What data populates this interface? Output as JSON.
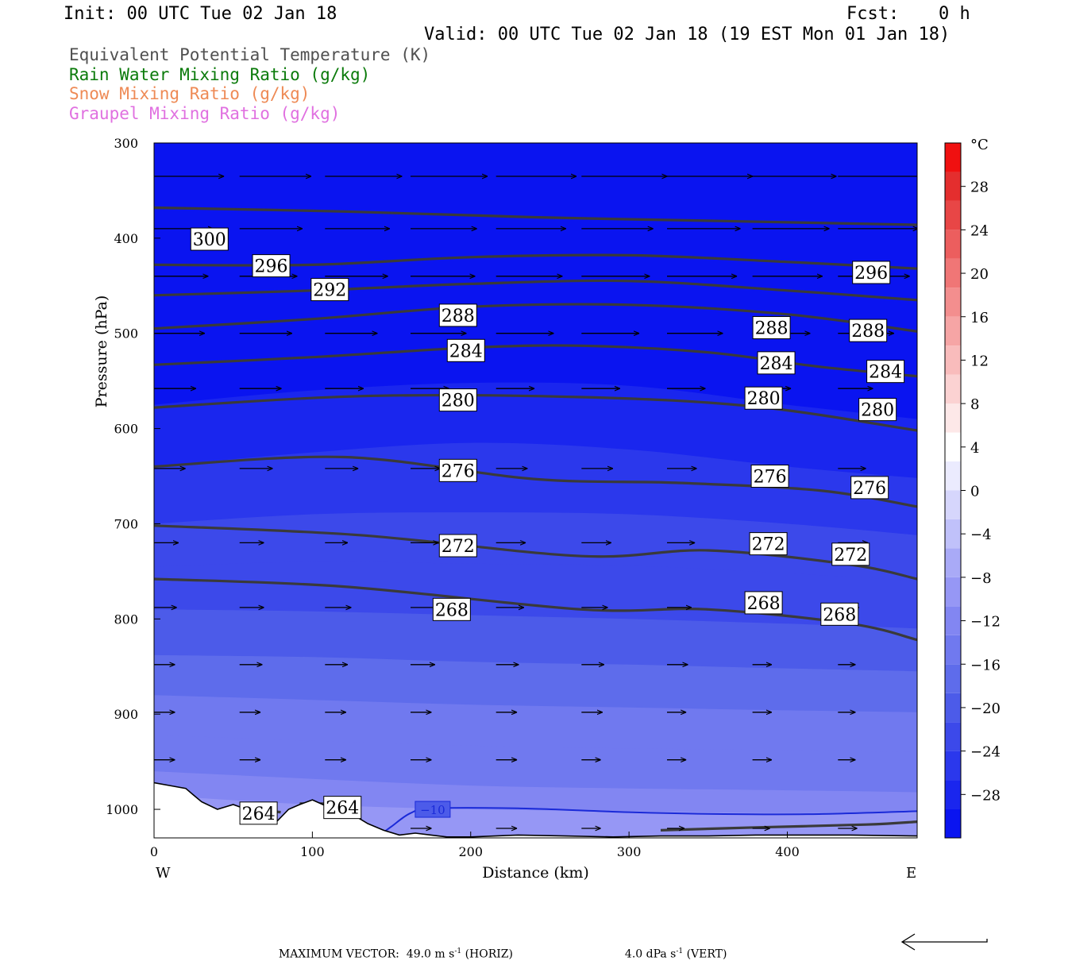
{
  "header": {
    "init": "Init: 00 UTC Tue 02 Jan 18",
    "fcst_label": "Fcst:",
    "fcst_value": "0 h",
    "valid": "Valid: 00 UTC Tue 02 Jan 18 (19 EST Mon 01 Jan 18)"
  },
  "legend": [
    {
      "text": "Equivalent Potential Temperature (K)",
      "color": "#505050"
    },
    {
      "text": "Rain Water Mixing Ratio (g/kg)",
      "color": "#0a7a0a"
    },
    {
      "text": "Snow Mixing Ratio (g/kg)",
      "color": "#ee8a55"
    },
    {
      "text": "Graupel Mixing Ratio (g/kg)",
      "color": "#e070e0"
    }
  ],
  "footer": {
    "max_vector_label": "MAXIMUM VECTOR:",
    "horiz_value": "49.0 m s",
    "horiz_exp": "-1",
    "horiz_tag": "(HORIZ)",
    "vert_value": "4.0 dPa s",
    "vert_exp": "-1",
    "vert_tag": "(VERT)"
  },
  "chart_data": {
    "type": "heatmap",
    "xlabel": "Distance (km)",
    "ylabel": "Pressure (hPa)",
    "xlim": [
      0,
      482
    ],
    "ylim": [
      300,
      1030
    ],
    "x_ticks": [
      0,
      100,
      200,
      300,
      400
    ],
    "y_ticks": [
      300,
      400,
      500,
      600,
      700,
      800,
      900,
      1000
    ],
    "x_end_labels": {
      "left": "W",
      "right": "E"
    },
    "colorbar": {
      "unit": "°C",
      "tick_labels": [
        "28",
        "24",
        "20",
        "16",
        "12",
        "8",
        "4",
        "0",
        "−4",
        "−8",
        "−12",
        "−16",
        "−20",
        "−24",
        "−28"
      ],
      "tick_values": [
        28,
        24,
        20,
        16,
        12,
        8,
        4,
        0,
        -4,
        -8,
        -12,
        -16,
        -20,
        -24,
        -28
      ],
      "range": [
        -32,
        32
      ],
      "colors_low_to_high": [
        "#0a14f0",
        "#1a26ee",
        "#2b38ec",
        "#3c49ea",
        "#4c5be9",
        "#5e6ceb",
        "#7079ef",
        "#8286f2",
        "#9697f5",
        "#a9aaf7",
        "#c0c1fa",
        "#d6d6fc",
        "#ebebfe",
        "#ffffff",
        "#fde8e8",
        "#fbd2d2",
        "#f9bcbc",
        "#f6a5a5",
        "#f38e8e",
        "#f07676",
        "#ec5e5e",
        "#e84646",
        "#e42e2e",
        "#f01010"
      ]
    },
    "temperature_bands": [
      {
        "temp_c": -30,
        "pressure_by_x": [
          [
            0,
            300
          ],
          [
            482,
            300
          ]
        ]
      },
      {
        "temp_c": -28,
        "pressure_by_x": [
          [
            0,
            575
          ],
          [
            100,
            560
          ],
          [
            200,
            552
          ],
          [
            300,
            555
          ],
          [
            400,
            575
          ],
          [
            482,
            590
          ]
        ]
      },
      {
        "temp_c": -26,
        "pressure_by_x": [
          [
            0,
            640
          ],
          [
            100,
            625
          ],
          [
            200,
            615
          ],
          [
            300,
            622
          ],
          [
            400,
            640
          ],
          [
            482,
            652
          ]
        ]
      },
      {
        "temp_c": -24,
        "pressure_by_x": [
          [
            0,
            700
          ],
          [
            100,
            690
          ],
          [
            200,
            688
          ],
          [
            300,
            690
          ],
          [
            400,
            700
          ],
          [
            482,
            712
          ]
        ]
      },
      {
        "temp_c": -22,
        "pressure_by_x": [
          [
            0,
            745
          ],
          [
            100,
            740
          ],
          [
            200,
            742
          ],
          [
            300,
            744
          ],
          [
            400,
            752
          ],
          [
            482,
            760
          ]
        ]
      },
      {
        "temp_c": -20,
        "pressure_by_x": [
          [
            0,
            790
          ],
          [
            100,
            792
          ],
          [
            200,
            796
          ],
          [
            300,
            800
          ],
          [
            400,
            805
          ],
          [
            482,
            810
          ]
        ]
      },
      {
        "temp_c": -18,
        "pressure_by_x": [
          [
            0,
            838
          ],
          [
            100,
            840
          ],
          [
            200,
            845
          ],
          [
            300,
            848
          ],
          [
            400,
            852
          ],
          [
            482,
            855
          ]
        ]
      },
      {
        "temp_c": -16,
        "pressure_by_x": [
          [
            0,
            880
          ],
          [
            100,
            885
          ],
          [
            200,
            890
          ],
          [
            300,
            893
          ],
          [
            400,
            896
          ],
          [
            482,
            898
          ]
        ]
      },
      {
        "temp_c": -14,
        "pressure_by_x": [
          [
            0,
            922
          ],
          [
            100,
            928
          ],
          [
            200,
            933
          ],
          [
            300,
            936
          ],
          [
            400,
            938
          ],
          [
            482,
            940
          ]
        ]
      },
      {
        "temp_c": -12,
        "pressure_by_x": [
          [
            0,
            960
          ],
          [
            100,
            968
          ],
          [
            200,
            975
          ],
          [
            300,
            978
          ],
          [
            400,
            980
          ],
          [
            482,
            982
          ]
        ]
      },
      {
        "temp_c": -10,
        "pressure_by_x": [
          [
            0,
            985
          ],
          [
            100,
            995
          ],
          [
            200,
            1000
          ],
          [
            300,
            1002
          ],
          [
            400,
            1004
          ],
          [
            482,
            1002
          ]
        ]
      }
    ],
    "ground_surface": [
      [
        0,
        972
      ],
      [
        10,
        975
      ],
      [
        20,
        978
      ],
      [
        25,
        985
      ],
      [
        30,
        992
      ],
      [
        40,
        1000
      ],
      [
        50,
        995
      ],
      [
        55,
        998
      ],
      [
        62,
        1002
      ],
      [
        70,
        1010
      ],
      [
        78,
        1012
      ],
      [
        85,
        1000
      ],
      [
        92,
        995
      ],
      [
        100,
        990
      ],
      [
        108,
        996
      ],
      [
        115,
        1000
      ],
      [
        125,
        1005
      ],
      [
        135,
        1015
      ],
      [
        145,
        1022
      ],
      [
        155,
        1027
      ],
      [
        165,
        1025
      ],
      [
        175,
        1027
      ],
      [
        185,
        1029
      ],
      [
        200,
        1029
      ],
      [
        230,
        1027
      ],
      [
        260,
        1028
      ],
      [
        290,
        1029
      ],
      [
        320,
        1028
      ],
      [
        350,
        1028
      ],
      [
        380,
        1027
      ],
      [
        410,
        1027
      ],
      [
        440,
        1027
      ],
      [
        482,
        1028
      ]
    ],
    "minus10_isotherm": [
      [
        142,
        1028
      ],
      [
        150,
        1018
      ],
      [
        162,
        1004
      ],
      [
        176,
        999
      ],
      [
        230,
        999
      ],
      [
        300,
        1003
      ],
      [
        360,
        1005
      ],
      [
        420,
        1005
      ],
      [
        482,
        1002
      ]
    ],
    "theta_e_contours": [
      {
        "value": 300,
        "pressure_by_x": [
          [
            0,
            368
          ],
          [
            120,
            372
          ],
          [
            240,
            378
          ],
          [
            360,
            382
          ],
          [
            482,
            386
          ]
        ]
      },
      {
        "value": 296,
        "pressure_by_x": [
          [
            0,
            428
          ],
          [
            100,
            428
          ],
          [
            200,
            420
          ],
          [
            300,
            418
          ],
          [
            400,
            425
          ],
          [
            482,
            432
          ]
        ]
      },
      {
        "value": 292,
        "pressure_by_x": [
          [
            0,
            460
          ],
          [
            100,
            455
          ],
          [
            200,
            448
          ],
          [
            300,
            445
          ],
          [
            400,
            455
          ],
          [
            482,
            465
          ]
        ]
      },
      {
        "value": 288,
        "pressure_by_x": [
          [
            0,
            495
          ],
          [
            100,
            485
          ],
          [
            200,
            472
          ],
          [
            300,
            470
          ],
          [
            400,
            480
          ],
          [
            482,
            498
          ]
        ]
      },
      {
        "value": 284,
        "pressure_by_x": [
          [
            0,
            533
          ],
          [
            100,
            525
          ],
          [
            200,
            515
          ],
          [
            270,
            513
          ],
          [
            350,
            520
          ],
          [
            420,
            535
          ],
          [
            482,
            545
          ]
        ]
      },
      {
        "value": 280,
        "pressure_by_x": [
          [
            0,
            578
          ],
          [
            130,
            566
          ],
          [
            270,
            567
          ],
          [
            380,
            577
          ],
          [
            482,
            602
          ]
        ]
      },
      {
        "value": 276,
        "pressure_by_x": [
          [
            0,
            640
          ],
          [
            120,
            630
          ],
          [
            240,
            653
          ],
          [
            330,
            657
          ],
          [
            420,
            665
          ],
          [
            482,
            682
          ]
        ]
      },
      {
        "value": 272,
        "pressure_by_x": [
          [
            0,
            702
          ],
          [
            130,
            712
          ],
          [
            270,
            734
          ],
          [
            350,
            728
          ],
          [
            440,
            743
          ],
          [
            482,
            758
          ]
        ]
      },
      {
        "value": 268,
        "pressure_by_x": [
          [
            0,
            758
          ],
          [
            120,
            766
          ],
          [
            270,
            790
          ],
          [
            350,
            790
          ],
          [
            440,
            805
          ],
          [
            482,
            822
          ]
        ]
      },
      {
        "value": 264,
        "pressure_by_x": [
          [
            320,
            1022
          ],
          [
            380,
            1019
          ],
          [
            450,
            1016
          ],
          [
            482,
            1013
          ]
        ]
      },
      {
        "value": 264,
        "pressure_by_x": [
          [
            50,
            998
          ],
          [
            80,
            1003
          ]
        ]
      },
      {
        "value": 264,
        "pressure_by_x": [
          [
            92,
            994
          ],
          [
            110,
            994
          ]
        ]
      }
    ],
    "theta_e_labels": [
      {
        "text": "300",
        "x": 35,
        "p": 401
      },
      {
        "text": "296",
        "x": 74,
        "p": 429
      },
      {
        "text": "292",
        "x": 111,
        "p": 454
      },
      {
        "text": "288",
        "x": 192,
        "p": 481
      },
      {
        "text": "284",
        "x": 197,
        "p": 518
      },
      {
        "text": "280",
        "x": 192,
        "p": 570
      },
      {
        "text": "276",
        "x": 192,
        "p": 644
      },
      {
        "text": "272",
        "x": 192,
        "p": 723
      },
      {
        "text": "268",
        "x": 188,
        "p": 790
      },
      {
        "text": "264",
        "x": 66,
        "p": 1004
      },
      {
        "text": "264",
        "x": 119,
        "p": 998
      },
      {
        "text": "296",
        "x": 453,
        "p": 436
      },
      {
        "text": "288",
        "x": 390,
        "p": 494
      },
      {
        "text": "288",
        "x": 451,
        "p": 497
      },
      {
        "text": "284",
        "x": 393,
        "p": 531
      },
      {
        "text": "284",
        "x": 462,
        "p": 540
      },
      {
        "text": "280",
        "x": 385,
        "p": 568
      },
      {
        "text": "280",
        "x": 457,
        "p": 580
      },
      {
        "text": "276",
        "x": 389,
        "p": 650
      },
      {
        "text": "276",
        "x": 452,
        "p": 662
      },
      {
        "text": "272",
        "x": 388,
        "p": 721
      },
      {
        "text": "272",
        "x": 440,
        "p": 732
      },
      {
        "text": "268",
        "x": 385,
        "p": 783
      },
      {
        "text": "268",
        "x": 433,
        "p": 795
      }
    ],
    "minus10_label": {
      "text": "−10",
      "x": 176,
      "p": 1000
    },
    "wind_vectors": {
      "columns_x": [
        0,
        54,
        108,
        162,
        216,
        270,
        324,
        378,
        432
      ],
      "levels": [
        {
          "p": 335,
          "u": [
            40,
            41,
            44,
            44,
            46,
            49,
            49,
            48,
            49
          ]
        },
        {
          "p": 390,
          "u": [
            34,
            36,
            37,
            38,
            40,
            41,
            42,
            44,
            46
          ]
        },
        {
          "p": 440,
          "u": [
            31,
            33,
            36,
            37,
            38,
            39,
            40,
            40,
            41
          ]
        },
        {
          "p": 500,
          "u": [
            29,
            30,
            30,
            32,
            33,
            33,
            32,
            33,
            32
          ]
        },
        {
          "p": 558,
          "u": [
            24,
            24,
            22,
            22,
            22,
            22,
            22,
            22,
            20
          ]
        },
        {
          "p": 642,
          "u": [
            18,
            19,
            19,
            17,
            18,
            18,
            17,
            18,
            16
          ]
        },
        {
          "p": 720,
          "u": [
            14,
            14,
            13,
            16,
            17,
            17,
            16,
            17,
            17
          ]
        },
        {
          "p": 788,
          "u": [
            13,
            14,
            15,
            17,
            16,
            15,
            14,
            14,
            12
          ]
        },
        {
          "p": 848,
          "u": [
            12,
            13,
            13,
            14,
            13,
            13,
            12,
            11,
            10
          ]
        },
        {
          "p": 898,
          "u": [
            12,
            12,
            12,
            12,
            12,
            12,
            11,
            11,
            10
          ]
        },
        {
          "p": 948,
          "u": [
            12,
            12,
            12,
            12,
            12,
            11,
            11,
            11,
            10
          ]
        },
        {
          "p": 1020,
          "u": [
            12,
            12,
            12,
            12,
            12,
            11,
            10,
            10,
            11
          ]
        }
      ]
    },
    "max_vector_arrow": "left"
  }
}
